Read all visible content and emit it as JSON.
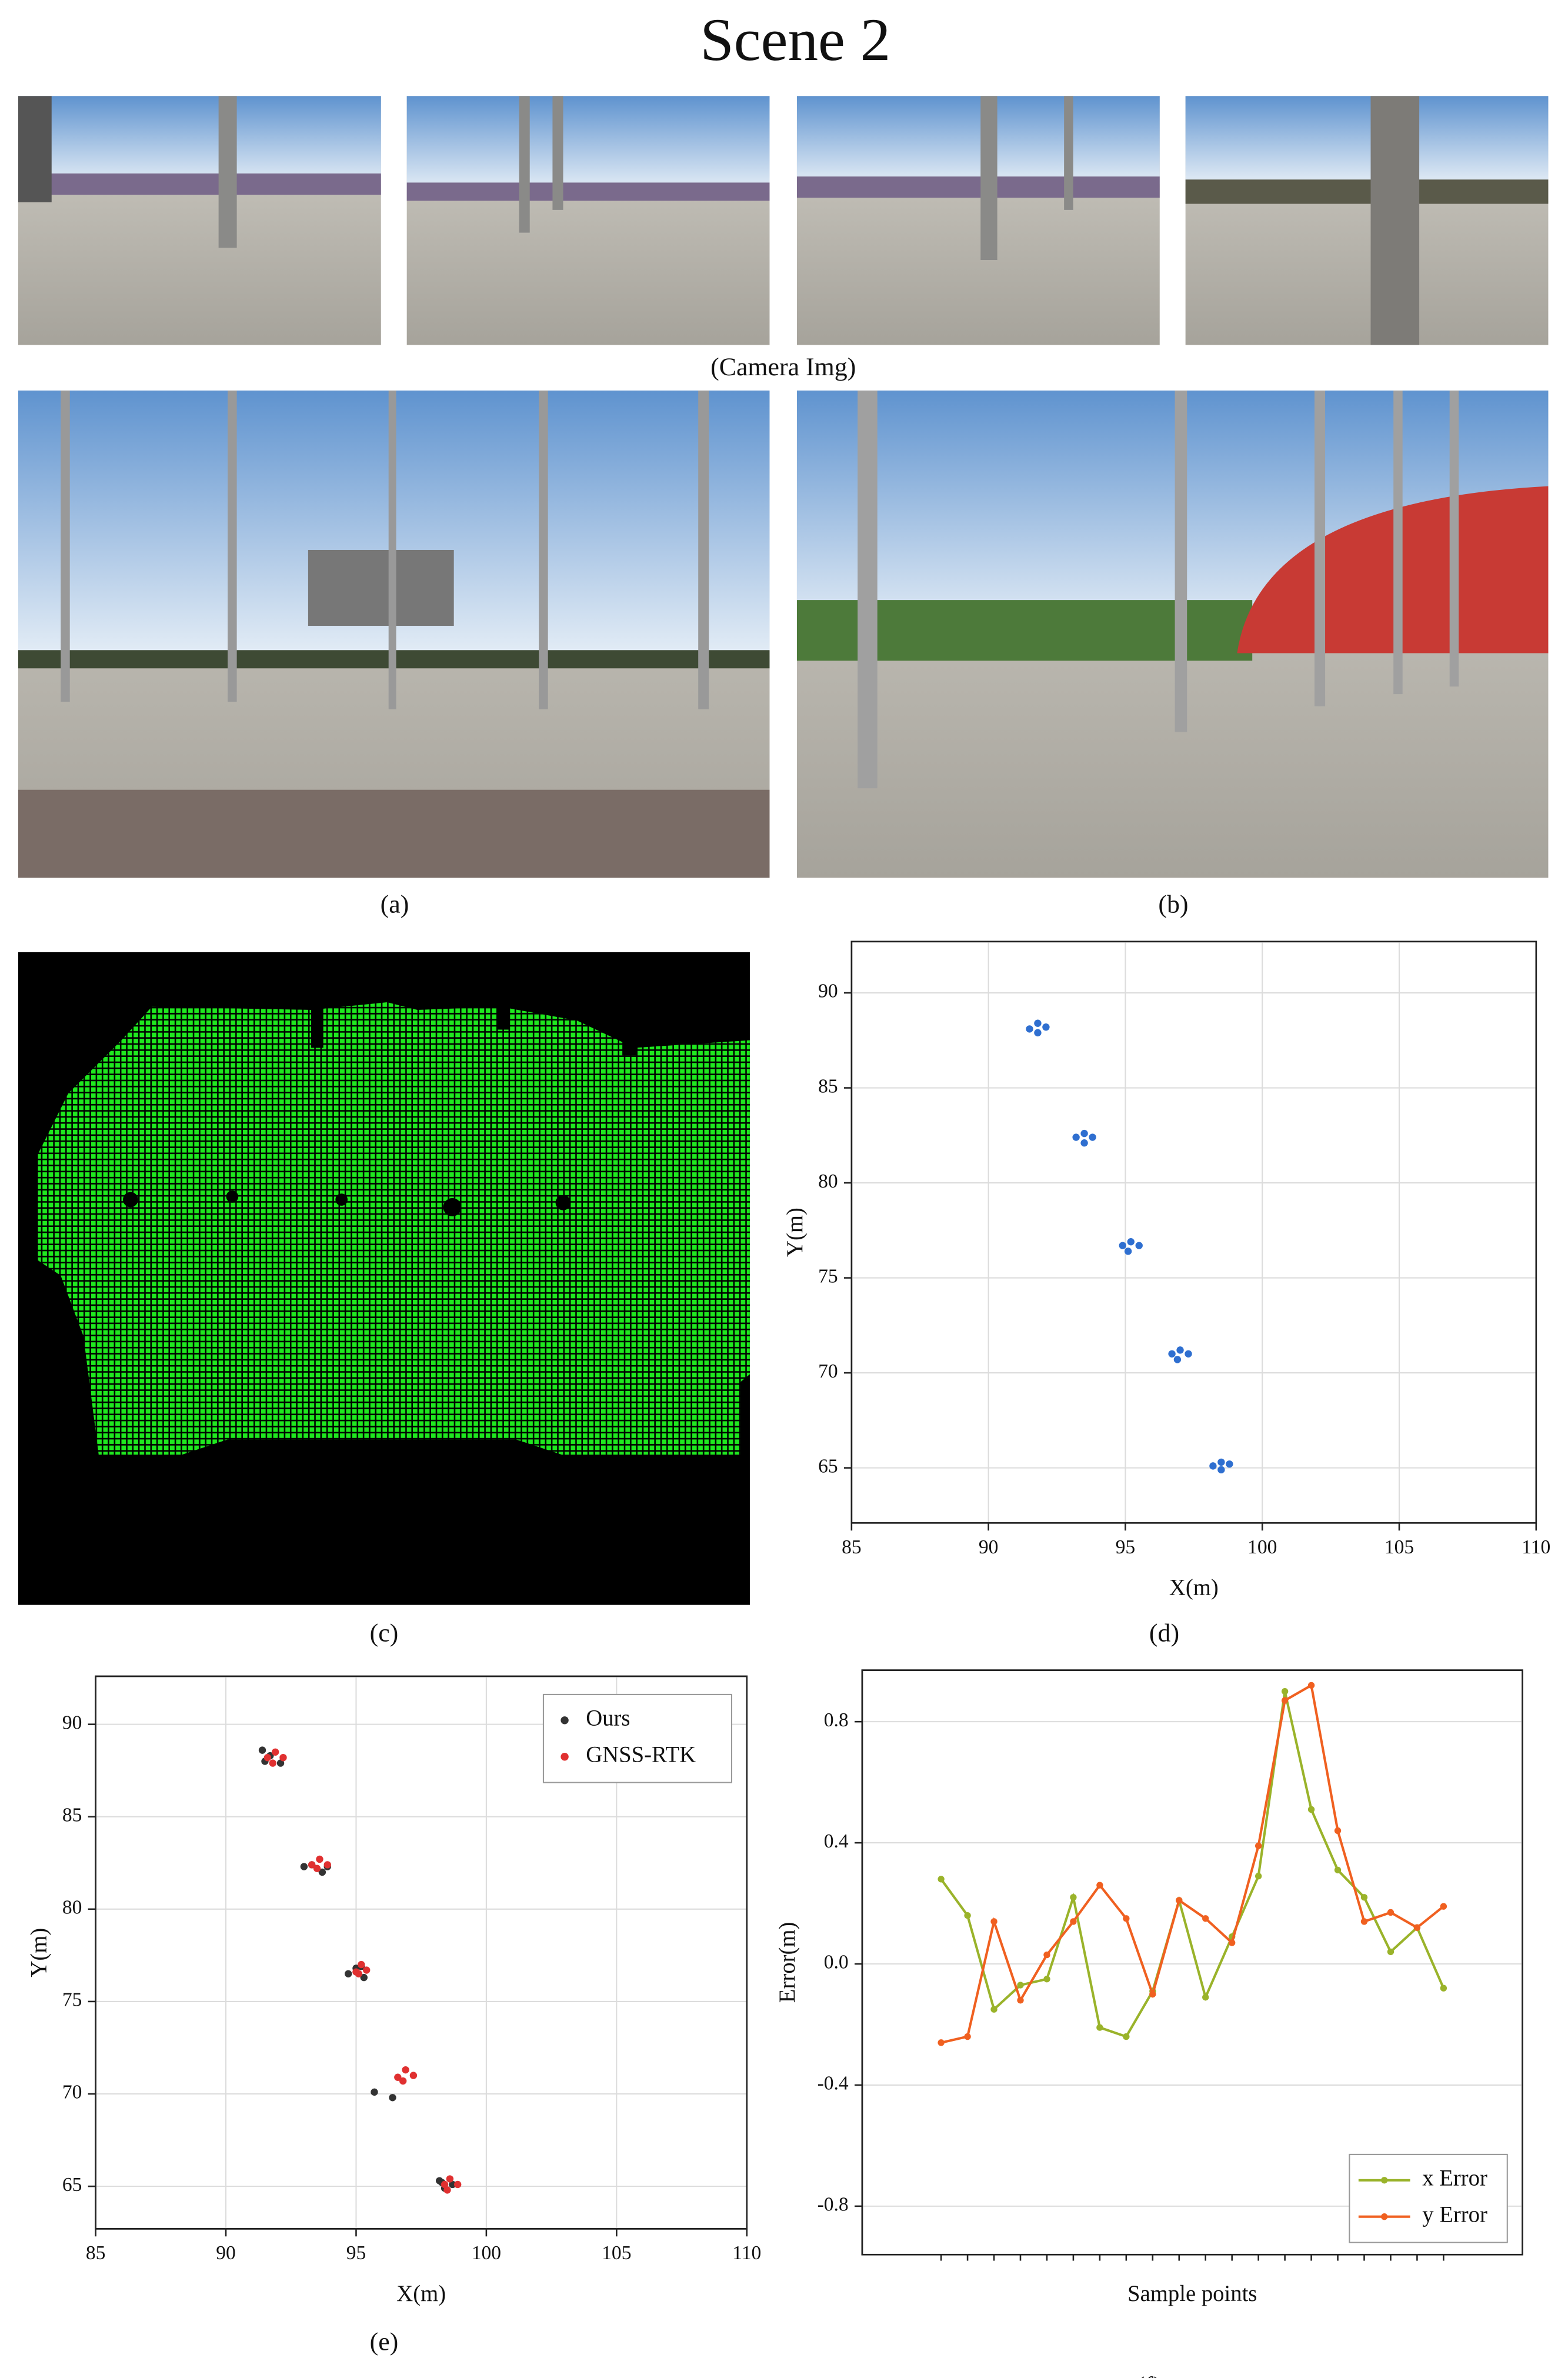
{
  "title": "Scene 2",
  "camera_caption": "(Camera Img)",
  "captions": [
    "(a)",
    "(b)",
    "(c)",
    "(d)",
    "(e)",
    "(f)"
  ],
  "chart_data": [
    {
      "type": "scatter",
      "xlabel": "X(m)",
      "ylabel": "Y(m)",
      "xlim": [
        85,
        110
      ],
      "ylim": [
        62.1,
        92.7
      ],
      "xticks": [
        85,
        90,
        95,
        100,
        105,
        110
      ],
      "yticks": [
        65,
        70,
        75,
        80,
        85,
        90
      ],
      "grid": true,
      "series": [
        {
          "color": "#2f6fd0",
          "x": [
            91.5,
            91.8,
            92.1,
            91.8,
            93.2,
            93.5,
            93.8,
            93.5,
            94.9,
            95.2,
            95.5,
            95.1,
            96.7,
            97.0,
            97.3,
            96.9,
            98.2,
            98.5,
            98.8,
            98.5
          ],
          "values": [
            88.1,
            88.4,
            88.2,
            87.9,
            82.4,
            82.6,
            82.4,
            82.1,
            76.7,
            76.9,
            76.7,
            76.4,
            71.0,
            71.2,
            71.0,
            70.7,
            65.1,
            65.3,
            65.2,
            64.9
          ]
        }
      ]
    },
    {
      "type": "scatter",
      "xlabel": "X(m)",
      "ylabel": "Y(m)",
      "xlim": [
        85,
        110
      ],
      "ylim": [
        62.7,
        92.6
      ],
      "xticks": [
        85,
        90,
        95,
        100,
        105,
        110
      ],
      "yticks": [
        65,
        70,
        75,
        80,
        85,
        90
      ],
      "grid": true,
      "legend": "top-right",
      "series": [
        {
          "name": "Ours",
          "color": "#333333",
          "x": [
            91.4,
            91.7,
            92.1,
            91.5,
            93.0,
            93.3,
            93.7,
            93.9,
            94.7,
            95.0,
            95.3,
            95.2,
            95.7,
            96.4,
            98.2,
            98.4,
            98.7,
            98.3
          ],
          "values": [
            88.6,
            88.3,
            87.9,
            88.0,
            82.3,
            82.4,
            82.0,
            82.3,
            76.5,
            76.8,
            76.3,
            76.9,
            70.1,
            69.8,
            65.3,
            64.9,
            65.1,
            65.2
          ]
        },
        {
          "name": "GNSS-RTK",
          "color": "#e03030",
          "x": [
            91.6,
            91.9,
            92.2,
            91.8,
            93.3,
            93.6,
            93.9,
            93.5,
            95.0,
            95.2,
            95.4,
            95.1,
            96.6,
            96.9,
            97.2,
            96.8,
            98.4,
            98.6,
            98.9,
            98.5
          ],
          "values": [
            88.2,
            88.5,
            88.2,
            87.9,
            82.4,
            82.7,
            82.4,
            82.2,
            76.6,
            77.0,
            76.7,
            76.5,
            70.9,
            71.3,
            71.0,
            70.7,
            65.1,
            65.4,
            65.1,
            64.8
          ]
        }
      ]
    },
    {
      "type": "line",
      "xlabel": "Sample points",
      "ylabel": "Error(m)",
      "ylim": [
        -0.96,
        0.97
      ],
      "yticks": [
        -0.8,
        -0.4,
        {
          "value": 0,
          "label": "0.0"
        },
        0.4,
        0.8
      ],
      "grid": true,
      "legend": "bottom-right",
      "categories": [
        null,
        null,
        null,
        null,
        null,
        null,
        null,
        null,
        null,
        null,
        null,
        null,
        null,
        null,
        null,
        null,
        null,
        null,
        null,
        null
      ],
      "series": [
        {
          "name": "x Error",
          "color": "#9ab32a",
          "values": [
            0.28,
            0.16,
            -0.15,
            -0.07,
            -0.05,
            0.22,
            -0.21,
            -0.24,
            -0.09,
            0.21,
            -0.11,
            0.09,
            0.29,
            0.9,
            0.51,
            0.31,
            0.22,
            0.04,
            0.12,
            -0.08
          ]
        },
        {
          "name": "y Error",
          "color": "#f06020",
          "values": [
            -0.26,
            -0.24,
            0.14,
            -0.12,
            0.03,
            0.14,
            0.26,
            0.15,
            -0.1,
            0.21,
            0.15,
            0.07,
            0.39,
            0.87,
            0.92,
            0.44,
            0.14,
            0.17,
            0.12,
            0.19
          ]
        }
      ]
    }
  ]
}
